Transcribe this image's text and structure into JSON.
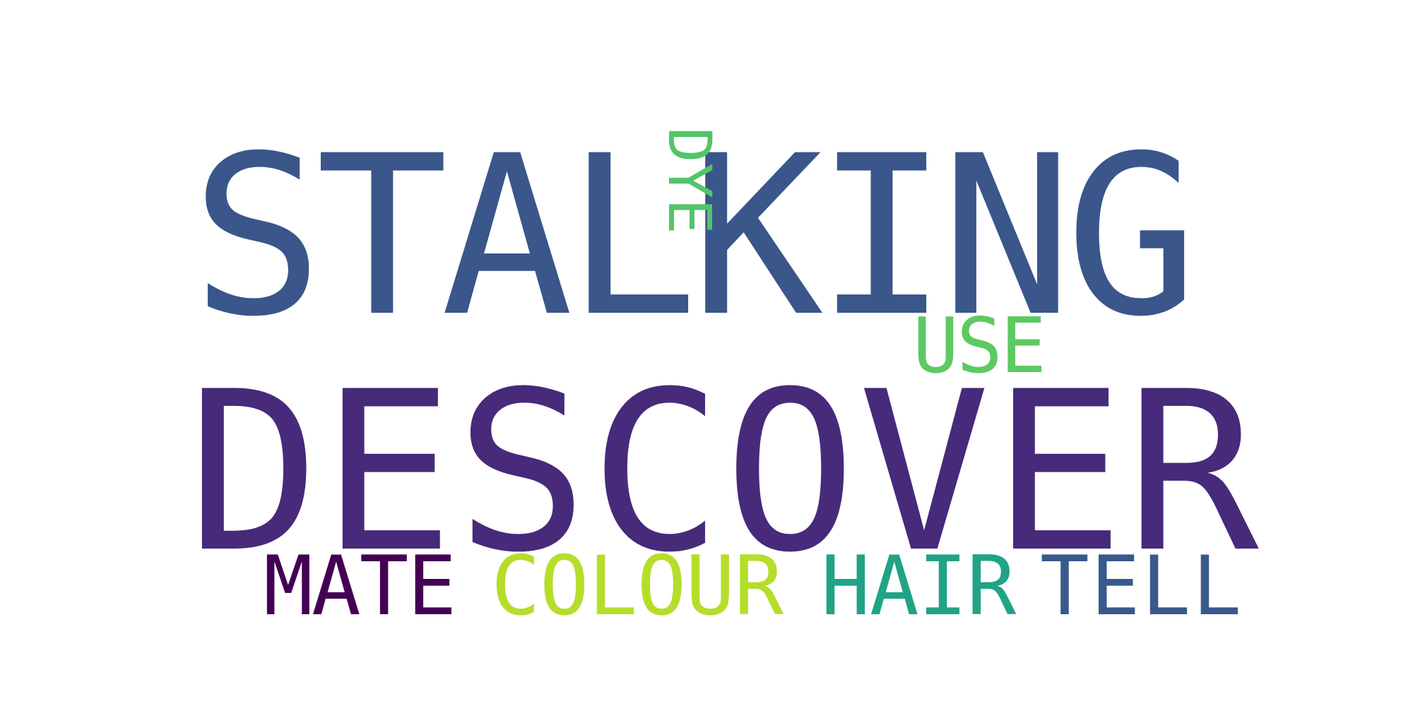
{
  "word_cloud": {
    "words": [
      {
        "text": "STALKING",
        "color": "#3a568a"
      },
      {
        "text": "DESCOVER",
        "color": "#472a7a"
      },
      {
        "text": "DYE",
        "color": "#52c569"
      },
      {
        "text": "USE",
        "color": "#5ec962"
      },
      {
        "text": "MATE",
        "color": "#440154"
      },
      {
        "text": "COLOUR",
        "color": "#b5de2b"
      },
      {
        "text": "HAIR",
        "color": "#20a386"
      },
      {
        "text": "TELL",
        "color": "#38598c"
      }
    ]
  }
}
